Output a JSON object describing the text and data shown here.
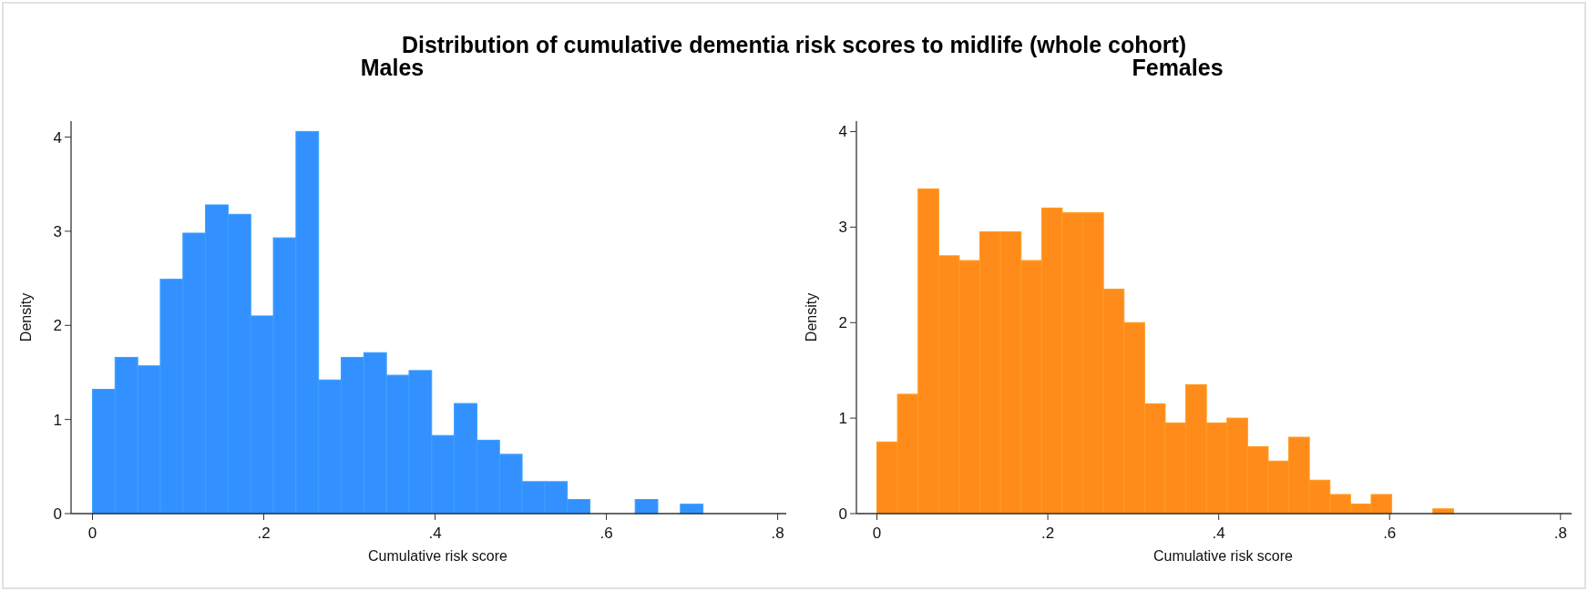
{
  "chart_data": [
    {
      "type": "histogram",
      "title": "Males",
      "annotations": [
        "Distribution of cumulative dementia risk scores to midlife (whole cohort)"
      ],
      "xlabel": "Cumulative risk score",
      "ylabel": "Density",
      "color": "#3391ff",
      "bins": [
        0,
        0.0264,
        0.0528,
        0.0792,
        0.1056,
        0.132,
        0.1584,
        0.1848,
        0.2112,
        0.2376,
        0.264,
        0.2904,
        0.3168,
        0.3432,
        0.3696,
        0.396,
        0.4224,
        0.4488,
        0.4752,
        0.5016,
        0.528,
        0.5544,
        0.5808,
        0.6072,
        0.6336,
        0.66,
        0.6864,
        0.7128
      ],
      "values": [
        1.32,
        1.66,
        1.57,
        2.49,
        2.98,
        3.28,
        3.18,
        2.1,
        2.93,
        4.06,
        1.42,
        1.66,
        1.71,
        1.47,
        1.52,
        0.83,
        1.17,
        0.78,
        0.63,
        0.34,
        0.34,
        0.15,
        0,
        0,
        0.15,
        0,
        0.1
      ],
      "xlim": [
        -0.025,
        0.81
      ],
      "xticks": [
        0,
        {
          "value": 0.2,
          "label": ".2"
        },
        {
          "value": 0.4,
          "label": ".4"
        },
        {
          "value": 0.6,
          "label": ".6"
        },
        {
          "value": 0.8,
          "label": ".8"
        }
      ],
      "ylim": [
        0,
        4.17
      ],
      "yticks": [
        0,
        1,
        2,
        3,
        4
      ],
      "grid": false
    },
    {
      "type": "histogram",
      "title": "Females",
      "xlabel": "Cumulative risk score",
      "ylabel": "Density",
      "color": "#ff8c1a",
      "bins": [
        0,
        0.0241,
        0.0482,
        0.0723,
        0.0964,
        0.1205,
        0.1446,
        0.1687,
        0.1928,
        0.2169,
        0.241,
        0.2651,
        0.2892,
        0.3133,
        0.3374,
        0.3615,
        0.3856,
        0.4097,
        0.4338,
        0.4579,
        0.482,
        0.5061,
        0.5302,
        0.5543,
        0.5784,
        0.6025,
        0.6266,
        0.6507,
        0.6748
      ],
      "values": [
        0.75,
        1.25,
        3.4,
        2.7,
        2.65,
        2.95,
        2.95,
        2.65,
        3.2,
        3.15,
        3.15,
        2.35,
        2.0,
        1.15,
        0.95,
        1.35,
        0.95,
        1.0,
        0.7,
        0.55,
        0.8,
        0.35,
        0.2,
        0.1,
        0.2,
        0,
        0,
        0.05
      ],
      "xlim": [
        -0.024,
        0.813
      ],
      "xticks": [
        0,
        {
          "value": 0.2,
          "label": ".2"
        },
        {
          "value": 0.4,
          "label": ".4"
        },
        {
          "value": 0.6,
          "label": ".6"
        },
        {
          "value": 0.8,
          "label": ".8"
        }
      ],
      "ylim": [
        0,
        4.11
      ],
      "yticks": [
        0,
        1,
        2,
        3,
        4
      ],
      "grid": false
    }
  ]
}
